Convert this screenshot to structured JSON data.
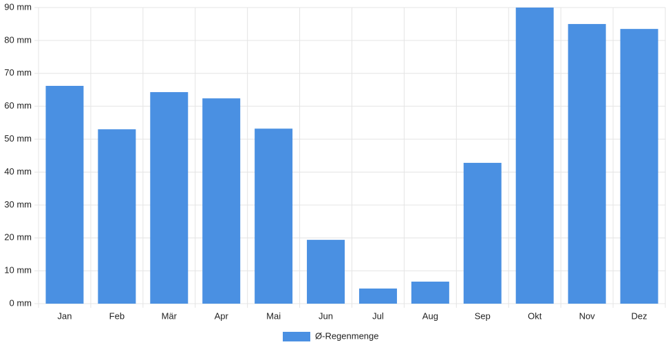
{
  "chart_data": {
    "type": "bar",
    "categories": [
      "Jan",
      "Feb",
      "Mär",
      "Apr",
      "Mai",
      "Jun",
      "Jul",
      "Aug",
      "Sep",
      "Okt",
      "Nov",
      "Dez"
    ],
    "series": [
      {
        "name": "Ø-Regenmenge",
        "color": "#4a90e2",
        "values": [
          66.2,
          53.0,
          64.3,
          62.4,
          53.2,
          19.4,
          4.6,
          6.7,
          42.8,
          90,
          85.0,
          83.5
        ]
      }
    ],
    "ylim": [
      0,
      90
    ],
    "yticks": [
      {
        "value": 0,
        "label": "0 mm"
      },
      {
        "value": 10,
        "label": "10 mm"
      },
      {
        "value": 20,
        "label": "20 mm"
      },
      {
        "value": 30,
        "label": "30 mm"
      },
      {
        "value": 40,
        "label": "40 mm"
      },
      {
        "value": 50,
        "label": "50 mm"
      },
      {
        "value": 60,
        "label": "60 mm"
      },
      {
        "value": 70,
        "label": "70 mm"
      },
      {
        "value": 80,
        "label": "80 mm"
      },
      {
        "value": 90,
        "label": "90 mm"
      }
    ],
    "grid": true,
    "legend": "bottom"
  }
}
